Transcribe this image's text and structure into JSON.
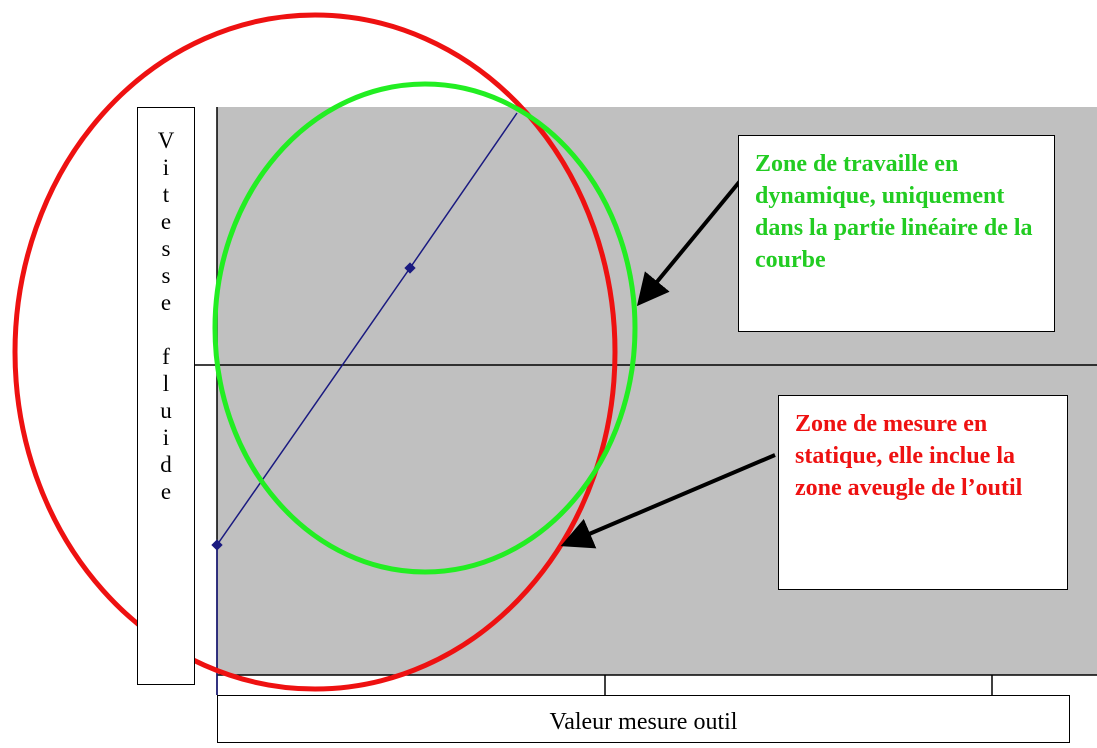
{
  "axes": {
    "y_label": "Vitesse fluide",
    "x_label": "Valeur mesure outil"
  },
  "annotations": [
    {
      "text": "Zone de travaille en dynamique, uniquement dans la partie linéaire de la courbe",
      "color": "#22cc22"
    },
    {
      "text": "Zone de mesure en statique, elle inclue la zone aveugle de l’outil",
      "color": "#ee1111"
    }
  ]
}
